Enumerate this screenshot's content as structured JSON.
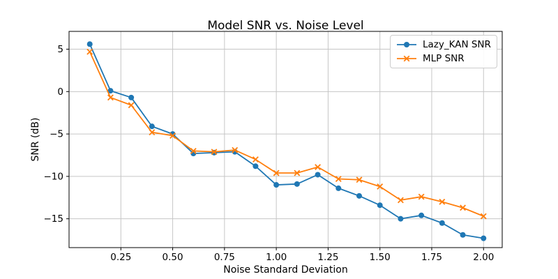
{
  "chart_data": {
    "type": "line",
    "title": "Model SNR vs. Noise Level",
    "xlabel": "Noise Standard Deviation",
    "ylabel": "SNR (dB)",
    "grid": true,
    "legend_position": "upper right",
    "xlim": [
      0,
      2.09
    ],
    "ylim": [
      -18.4,
      7.1
    ],
    "xticks": [
      {
        "v": 0.25,
        "label": "0.25"
      },
      {
        "v": 0.5,
        "label": "0.50"
      },
      {
        "v": 0.75,
        "label": "0.75"
      },
      {
        "v": 1.0,
        "label": "1.00"
      },
      {
        "v": 1.25,
        "label": "1.25"
      },
      {
        "v": 1.5,
        "label": "1.50"
      },
      {
        "v": 1.75,
        "label": "1.75"
      },
      {
        "v": 2.0,
        "label": "2.00"
      }
    ],
    "yticks": [
      {
        "v": 5,
        "label": "5"
      },
      {
        "v": 0,
        "label": "0"
      },
      {
        "v": -5,
        "label": "−5"
      },
      {
        "v": -10,
        "label": "−10"
      },
      {
        "v": -15,
        "label": "−15"
      }
    ],
    "x": [
      0.1,
      0.2,
      0.3,
      0.4,
      0.5,
      0.6,
      0.7,
      0.8,
      0.9,
      1.0,
      1.1,
      1.2,
      1.3,
      1.4,
      1.5,
      1.6,
      1.7,
      1.8,
      1.9,
      2.0
    ],
    "series": [
      {
        "name": "Lazy_KAN SNR",
        "color": "#1f77b4",
        "marker": "circle",
        "values": [
          5.6,
          0.1,
          -0.7,
          -4.1,
          -5.0,
          -7.3,
          -7.2,
          -7.1,
          -8.8,
          -11.0,
          -10.9,
          -9.8,
          -11.4,
          -12.3,
          -13.4,
          -15.0,
          -14.6,
          -15.5,
          -16.9,
          -17.3
        ]
      },
      {
        "name": "MLP SNR",
        "color": "#ff7f0e",
        "marker": "x",
        "values": [
          4.7,
          -0.7,
          -1.6,
          -4.8,
          -5.2,
          -7.0,
          -7.1,
          -6.9,
          -8.0,
          -9.6,
          -9.6,
          -8.9,
          -10.3,
          -10.4,
          -11.2,
          -12.8,
          -12.4,
          -13.0,
          -13.7,
          -14.7
        ]
      }
    ],
    "colors": {
      "grid": "#c6c6c6",
      "spine": "#000000",
      "text": "#000000"
    }
  }
}
